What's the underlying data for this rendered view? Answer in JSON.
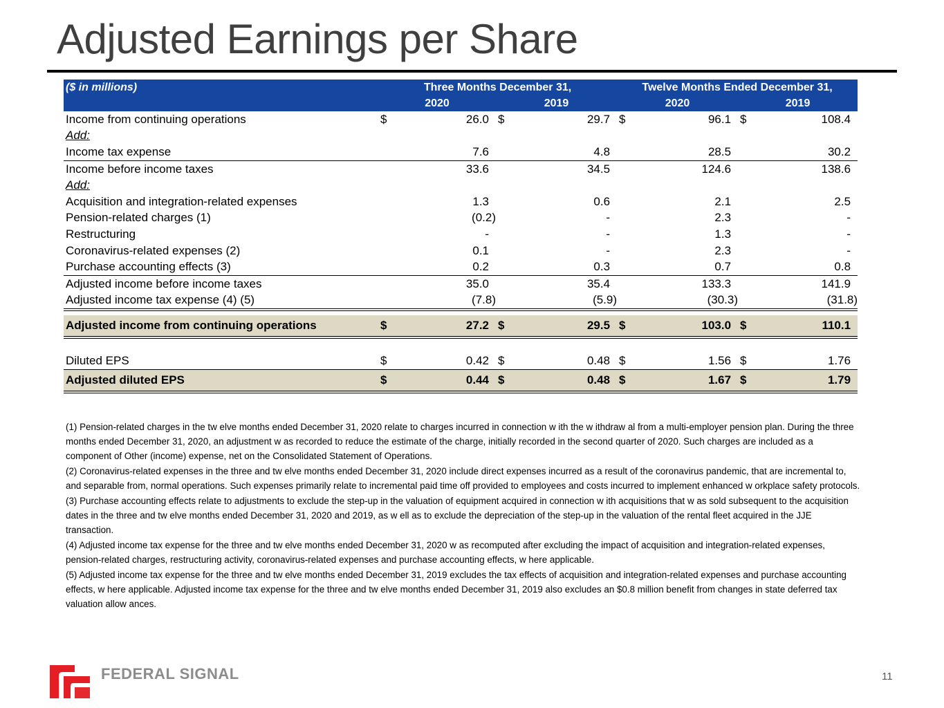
{
  "title": "Adjusted Earnings per Share",
  "table": {
    "unit_label": "($ in millions)",
    "group_headers": [
      "Three Months December 31,",
      "Twelve Months Ended December 31,"
    ],
    "year_headers": [
      "2020",
      "2019",
      "2020",
      "2019"
    ],
    "rows": [
      {
        "label": "Income from continuing operations",
        "cur": [
          "$",
          "$",
          "$",
          "$"
        ],
        "vals": [
          "26.0",
          "29.7",
          "96.1",
          "108.4"
        ]
      },
      {
        "label": "Add:",
        "cur": [
          "",
          "",
          "",
          ""
        ],
        "vals": [
          "",
          "",
          "",
          ""
        ]
      },
      {
        "label": "Income tax expense",
        "cur": [
          "",
          "",
          "",
          ""
        ],
        "vals": [
          "7.6",
          "4.8",
          "28.5",
          "30.2"
        ]
      },
      {
        "label": "Income before income taxes",
        "cur": [
          "",
          "",
          "",
          ""
        ],
        "vals": [
          "33.6",
          "34.5",
          "124.6",
          "138.6"
        ]
      },
      {
        "label": "Add:",
        "cur": [
          "",
          "",
          "",
          ""
        ],
        "vals": [
          "",
          "",
          "",
          ""
        ]
      },
      {
        "label": "Acquisition and integration-related expenses",
        "cur": [
          "",
          "",
          "",
          ""
        ],
        "vals": [
          "1.3",
          "0.6",
          "2.1",
          "2.5"
        ]
      },
      {
        "label": "Pension-related charges (1)",
        "cur": [
          "",
          "",
          "",
          ""
        ],
        "vals": [
          "(0.2)",
          "-",
          "2.3",
          "-"
        ]
      },
      {
        "label": "Restructuring",
        "cur": [
          "",
          "",
          "",
          ""
        ],
        "vals": [
          "-",
          "-",
          "1.3",
          "-"
        ]
      },
      {
        "label": "Coronavirus-related expenses (2)",
        "cur": [
          "",
          "",
          "",
          ""
        ],
        "vals": [
          "0.1",
          "-",
          "2.3",
          "-"
        ]
      },
      {
        "label": "Purchase accounting effects (3)",
        "cur": [
          "",
          "",
          "",
          ""
        ],
        "vals": [
          "0.2",
          "0.3",
          "0.7",
          "0.8"
        ]
      },
      {
        "label": "Adjusted income before income taxes",
        "cur": [
          "",
          "",
          "",
          ""
        ],
        "vals": [
          "35.0",
          "35.4",
          "133.3",
          "141.9"
        ]
      },
      {
        "label": "Adjusted income tax expense (4) (5)",
        "cur": [
          "",
          "",
          "",
          ""
        ],
        "vals": [
          "(7.8)",
          "(5.9)",
          "(30.3)",
          "(31.8)"
        ]
      },
      {
        "label": "Adjusted income from continuing operations",
        "cur": [
          "$",
          "$",
          "$",
          "$"
        ],
        "vals": [
          "27.2",
          "29.5",
          "103.0",
          "110.1"
        ]
      },
      {
        "label": "Diluted EPS",
        "cur": [
          "$",
          "$",
          "$",
          "$"
        ],
        "vals": [
          "0.42",
          "0.48",
          "1.56",
          "1.76"
        ]
      },
      {
        "label": "Adjusted diluted EPS",
        "cur": [
          "$",
          "$",
          "$",
          "$"
        ],
        "vals": [
          "0.44",
          "0.48",
          "1.67",
          "1.79"
        ]
      }
    ]
  },
  "footnotes": [
    "(1) Pension-related charges in the tw elve months ended December 31, 2020 relate to charges incurred in connection w ith the w ithdraw al from a multi-employer pension plan. During the three months ended December 31, 2020, an adjustment w as recorded to reduce the estimate of the charge, initially recorded in the second quarter of 2020. Such charges are included as a component of Other (income) expense, net on the Consolidated Statement of Operations.",
    "(2) Coronavirus-related expenses in the three and tw elve months ended December 31, 2020 include direct expenses incurred as a result of the coronavirus pandemic, that are incremental to, and separable from, normal operations. Such expenses primarily relate to incremental paid time off provided to employees and costs incurred to implement enhanced w orkplace safety protocols.",
    "(3) Purchase accounting effects relate to adjustments to exclude the step-up in the valuation of equipment acquired in connection w ith acquisitions that w as sold subsequent to the acquisition dates in the three and tw elve months ended December 31, 2020 and 2019, as w ell as to exclude the depreciation of the step-up in the valuation of the rental fleet acquired in the JJE transaction.",
    "(4) Adjusted income tax expense for the three and tw elve months ended December 31, 2020 w as recomputed after excluding the impact of acquisition and integration-related expenses, pension-related charges, restructuring activity, coronavirus-related expenses and purchase accounting effects, w here applicable.",
    "(5) Adjusted income tax expense for the three and tw elve months ended December 31, 2019 excludes the tax effects of acquisition and integration-related expenses and purchase accounting effects, w here applicable. Adjusted income tax expense for the three and tw elve months ended December 31, 2019 also excludes an $0.8 million benefit from changes in state deferred tax valuation allow ances."
  ],
  "logo": {
    "text": "FEDERAL SIGNAL",
    "color": "#e31e24"
  },
  "page_number": "11",
  "colors": {
    "header_bg": "#1547a0",
    "highlight_bg": "#ddd9c4",
    "title": "#3f3f3f"
  }
}
